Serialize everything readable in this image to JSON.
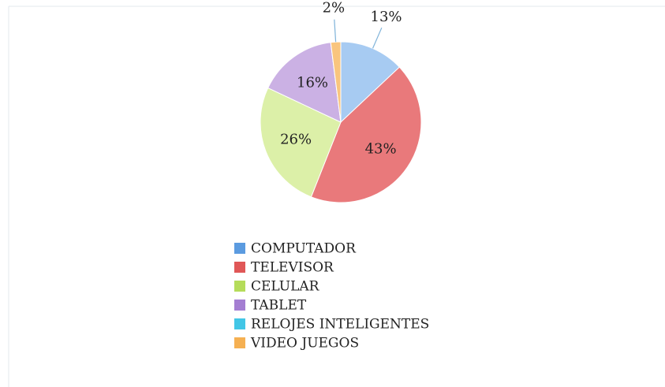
{
  "chart_data": {
    "type": "pie",
    "categories": [
      "COMPUTADOR",
      "TELEVISOR",
      "CELULAR",
      "TABLET",
      "RELOJES INTELIGENTES",
      "VIDEO JUEGOS"
    ],
    "values": [
      13,
      43,
      26,
      16,
      0,
      2
    ],
    "value_labels": [
      "13%",
      "43%",
      "26%",
      "16%",
      null,
      "2%"
    ],
    "colors": [
      "#a7cbf2",
      "#e9797b",
      "#dcf0a8",
      "#cbb1e4",
      "#62d2ea",
      "#f9c57e"
    ],
    "legend_colors": [
      "#5b9be0",
      "#e05757",
      "#b5dc5a",
      "#a47ed2",
      "#42c6e6",
      "#f5b052"
    ],
    "legend": "bottom"
  }
}
